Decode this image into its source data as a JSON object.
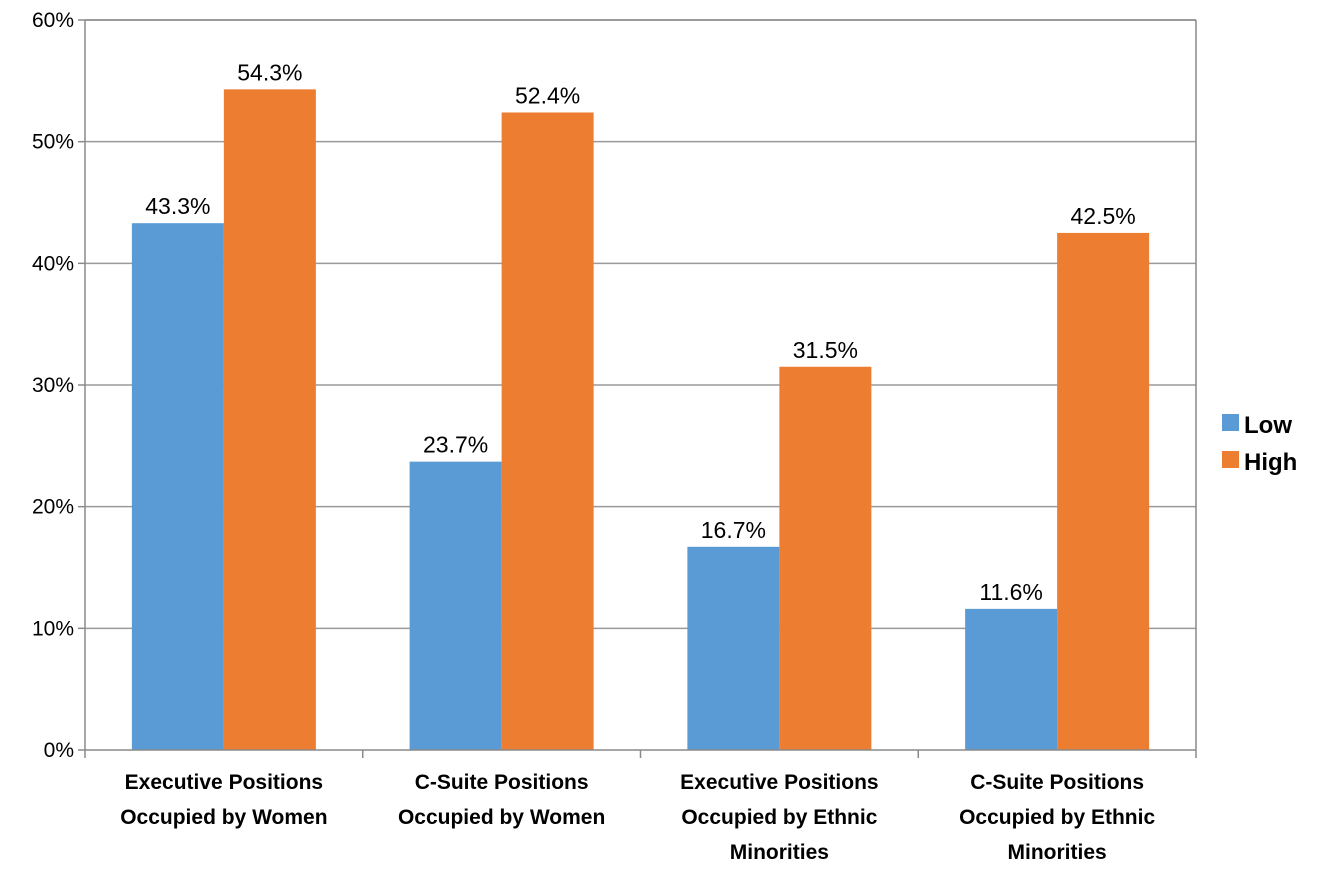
{
  "chart_data": {
    "type": "bar",
    "title": "",
    "xlabel": "",
    "ylabel": "",
    "categories": [
      [
        "Executive Positions",
        "Occupied by Women"
      ],
      [
        "C-Suite Positions",
        "Occupied by Women"
      ],
      [
        "Executive Positions",
        "Occupied by Ethnic",
        "Minorities"
      ],
      [
        "C-Suite Positions",
        "Occupied by Ethnic",
        "Minorities"
      ]
    ],
    "series": [
      {
        "name": "Low",
        "color": "#5B9BD5",
        "values": [
          43.3,
          23.7,
          16.7,
          11.6
        ],
        "labels": [
          "43.3%",
          "23.7%",
          "16.7%",
          "11.6%"
        ]
      },
      {
        "name": "High",
        "color": "#ED7D31",
        "values": [
          54.3,
          52.4,
          31.5,
          42.5
        ],
        "labels": [
          "54.3%",
          "52.4%",
          "31.5%",
          "42.5%"
        ]
      }
    ],
    "ylim": [
      0,
      60
    ],
    "yticks": [
      0,
      10,
      20,
      30,
      40,
      50,
      60
    ],
    "ytick_labels": [
      "0%",
      "10%",
      "20%",
      "30%",
      "40%",
      "50%",
      "60%"
    ],
    "grid": true,
    "legend_position": "right"
  }
}
